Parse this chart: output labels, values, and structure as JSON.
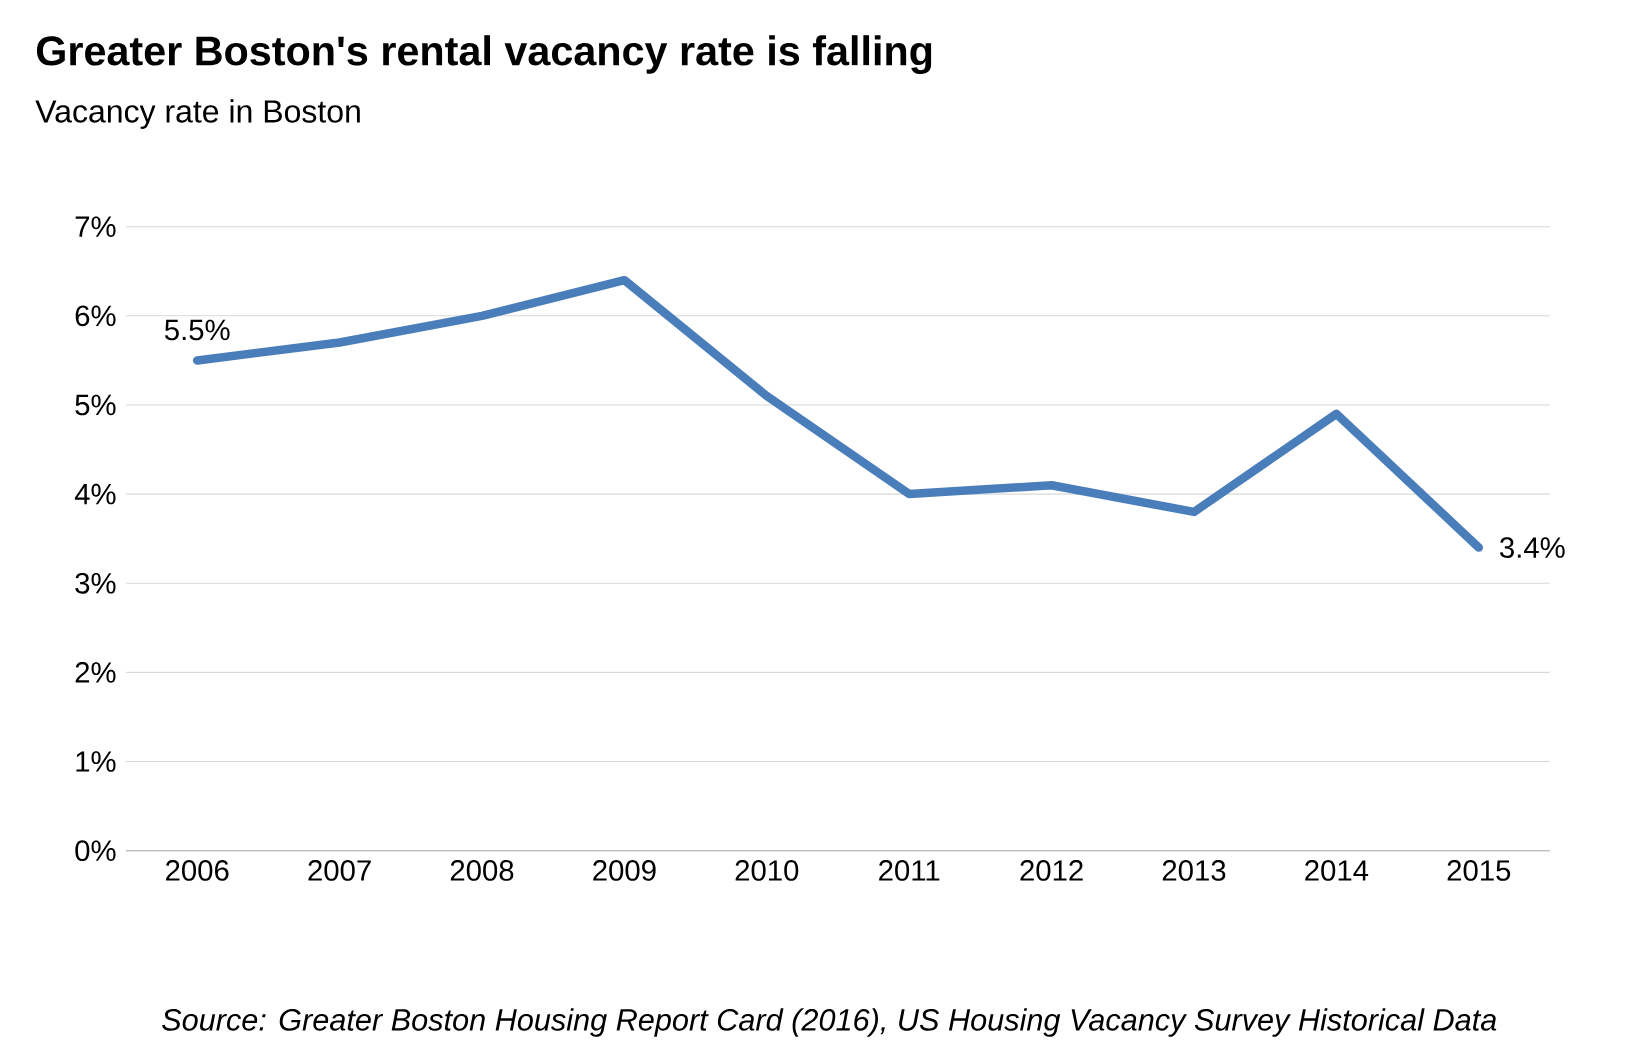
{
  "chart_data": {
    "type": "line",
    "title": "Greater Boston's rental vacancy rate is falling",
    "subtitle": "Vacancy rate in Boston",
    "categories": [
      "2006",
      "2007",
      "2008",
      "2009",
      "2010",
      "2011",
      "2012",
      "2013",
      "2014",
      "2015"
    ],
    "series": [
      {
        "color": "#4a7ebb",
        "values": [
          5.5,
          5.7,
          6.0,
          6.4,
          5.1,
          4.0,
          4.1,
          3.8,
          4.9,
          3.4
        ],
        "value_labels": [
          "5.5%",
          null,
          null,
          null,
          null,
          null,
          null,
          null,
          null,
          "3.4%"
        ]
      }
    ],
    "ylim": [
      0,
      7
    ],
    "yticks": [
      {
        "value": 0,
        "label": "0%"
      },
      {
        "value": 1,
        "label": "1%"
      },
      {
        "value": 2,
        "label": "2%"
      },
      {
        "value": 3,
        "label": "3%"
      },
      {
        "value": 4,
        "label": "4%"
      },
      {
        "value": 5,
        "label": "5%"
      },
      {
        "value": 6,
        "label": "6%"
      },
      {
        "value": 7,
        "label": "7%"
      }
    ],
    "grid": "y",
    "legend": false,
    "marker": "none",
    "line_style": "solid",
    "annotations": [
      "Source: Greater Boston Housing Report Card (2016), US Housing Vacancy Survey Historical Data"
    ]
  }
}
